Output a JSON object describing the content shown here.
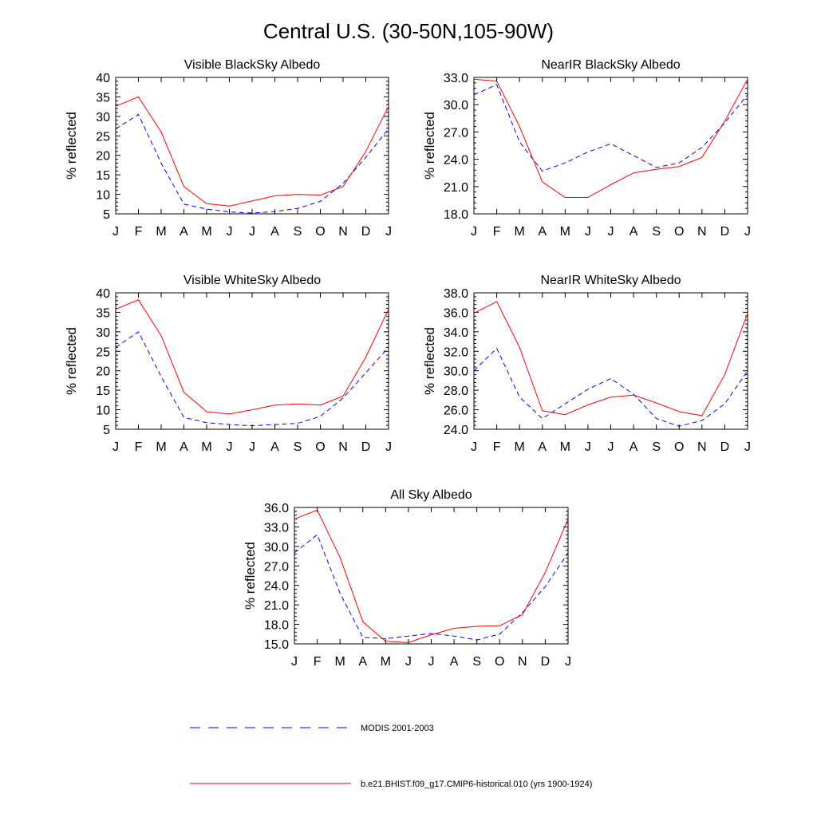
{
  "figure_title": "Central U.S. (30-50N,105-90W)",
  "legend": [
    {
      "label": "MODIS 2001-2003",
      "color": "#0000ff",
      "dash": true
    },
    {
      "label": "b.e21.BHIST.f09_g17.CMIP6-historical.010 (yrs 1900-1924)",
      "color": "#ff0000",
      "dash": false
    }
  ],
  "chart_data": [
    {
      "type": "line",
      "title": "Visible BlackSky Albedo",
      "ylabel": "% reflected",
      "xlabel": "",
      "categories": [
        "J",
        "F",
        "M",
        "A",
        "M",
        "J",
        "J",
        "A",
        "S",
        "O",
        "N",
        "D",
        "J"
      ],
      "ylim": [
        5,
        40
      ],
      "yticks": [
        "5",
        "10",
        "15",
        "20",
        "25",
        "30",
        "35",
        "40"
      ],
      "grid": false,
      "series": [
        {
          "name": "MODIS 2001-2003",
          "color": "#0000ff",
          "dash": true,
          "values": [
            26.8,
            30.5,
            18.0,
            7.5,
            6.2,
            5.5,
            5.2,
            5.6,
            6.4,
            8.2,
            12.8,
            19.5,
            26.8
          ]
        },
        {
          "name": "b.e21.BHIST.f09_g17.CMIP6-historical.010 (yrs 1900-1924)",
          "color": "#ff0000",
          "dash": false,
          "values": [
            32.6,
            35.0,
            26.0,
            12.0,
            7.6,
            7.0,
            8.3,
            9.6,
            10.0,
            9.8,
            12.0,
            21.0,
            32.6
          ]
        }
      ]
    },
    {
      "type": "line",
      "title": "NearIR BlackSky Albedo",
      "ylabel": "% reflected",
      "xlabel": "",
      "categories": [
        "J",
        "F",
        "M",
        "A",
        "M",
        "J",
        "J",
        "A",
        "S",
        "O",
        "N",
        "D",
        "J"
      ],
      "ylim": [
        18,
        33
      ],
      "yticks": [
        "18.0",
        "21.0",
        "24.0",
        "27.0",
        "30.0",
        "33.0"
      ],
      "grid": false,
      "series": [
        {
          "name": "MODIS 2001-2003",
          "color": "#0000ff",
          "dash": true,
          "values": [
            31.1,
            32.2,
            25.9,
            22.7,
            23.6,
            24.8,
            25.7,
            24.4,
            23.1,
            23.6,
            25.3,
            28.0,
            31.1
          ]
        },
        {
          "name": "b.e21.BHIST.f09_g17.CMIP6-historical.010 (yrs 1900-1924)",
          "color": "#ff0000",
          "dash": false,
          "values": [
            32.8,
            32.6,
            27.6,
            21.5,
            19.8,
            19.8,
            21.2,
            22.5,
            22.9,
            23.2,
            24.2,
            28.2,
            32.8
          ]
        }
      ]
    },
    {
      "type": "line",
      "title": "Visible WhiteSky Albedo",
      "ylabel": "% reflected",
      "xlabel": "",
      "categories": [
        "J",
        "F",
        "M",
        "A",
        "M",
        "J",
        "J",
        "A",
        "S",
        "O",
        "N",
        "D",
        "J"
      ],
      "ylim": [
        5,
        40
      ],
      "yticks": [
        "5",
        "10",
        "15",
        "20",
        "25",
        "30",
        "35",
        "40"
      ],
      "grid": false,
      "series": [
        {
          "name": "MODIS 2001-2003",
          "color": "#0000ff",
          "dash": true,
          "values": [
            26.0,
            30.0,
            18.5,
            8.0,
            6.7,
            6.2,
            5.9,
            6.2,
            6.5,
            8.3,
            13.0,
            19.5,
            26.0
          ]
        },
        {
          "name": "b.e21.BHIST.f09_g17.CMIP6-historical.010 (yrs 1900-1924)",
          "color": "#ff0000",
          "dash": false,
          "values": [
            35.8,
            38.2,
            29.0,
            14.5,
            9.5,
            8.9,
            10.0,
            11.2,
            11.5,
            11.2,
            13.5,
            23.5,
            35.8
          ]
        }
      ]
    },
    {
      "type": "line",
      "title": "NearIR WhiteSky Albedo",
      "ylabel": "% reflected",
      "xlabel": "",
      "categories": [
        "J",
        "F",
        "M",
        "A",
        "M",
        "J",
        "J",
        "A",
        "S",
        "O",
        "N",
        "D",
        "J"
      ],
      "ylim": [
        24,
        38
      ],
      "yticks": [
        "24.0",
        "26.0",
        "28.0",
        "30.0",
        "32.0",
        "34.0",
        "36.0",
        "38.0"
      ],
      "grid": false,
      "series": [
        {
          "name": "MODIS 2001-2003",
          "color": "#0000ff",
          "dash": true,
          "values": [
            30.0,
            32.3,
            27.3,
            25.1,
            26.6,
            28.1,
            29.2,
            27.6,
            25.1,
            24.3,
            24.9,
            26.6,
            30.0
          ]
        },
        {
          "name": "b.e21.BHIST.f09_g17.CMIP6-historical.010 (yrs 1900-1924)",
          "color": "#ff0000",
          "dash": false,
          "values": [
            35.9,
            37.1,
            32.4,
            25.9,
            25.5,
            26.5,
            27.3,
            27.5,
            26.7,
            25.8,
            25.4,
            29.6,
            35.9
          ]
        }
      ]
    },
    {
      "type": "line",
      "title": "All Sky Albedo",
      "ylabel": "% reflected",
      "xlabel": "",
      "categories": [
        "J",
        "F",
        "M",
        "A",
        "M",
        "J",
        "J",
        "A",
        "S",
        "O",
        "N",
        "D",
        "J"
      ],
      "ylim": [
        15,
        36
      ],
      "yticks": [
        "15.0",
        "18.0",
        "21.0",
        "24.0",
        "27.0",
        "30.0",
        "33.0",
        "36.0"
      ],
      "grid": false,
      "series": [
        {
          "name": "MODIS 2001-2003",
          "color": "#0000ff",
          "dash": true,
          "values": [
            29.0,
            31.8,
            22.8,
            16.0,
            15.8,
            16.2,
            16.6,
            16.2,
            15.6,
            16.5,
            19.8,
            23.8,
            29.0
          ]
        },
        {
          "name": "b.e21.BHIST.f09_g17.CMIP6-historical.010 (yrs 1900-1924)",
          "color": "#ff0000",
          "dash": false,
          "values": [
            34.2,
            35.6,
            28.3,
            18.4,
            15.4,
            15.2,
            16.4,
            17.4,
            17.7,
            17.8,
            19.5,
            26.0,
            34.2
          ]
        }
      ]
    }
  ]
}
